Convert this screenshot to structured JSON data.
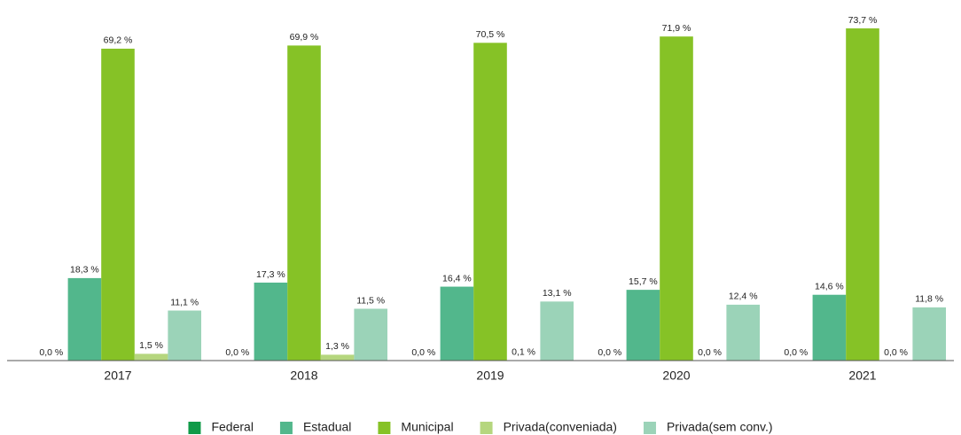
{
  "chart_data": {
    "type": "bar",
    "categories": [
      "2017",
      "2018",
      "2019",
      "2020",
      "2021"
    ],
    "ylim": [
      0,
      80
    ],
    "legend": "bottom",
    "series": [
      {
        "name": "Federal",
        "color": "#0f9a48",
        "values": [
          0.0,
          0.0,
          0.0,
          0.0,
          0.0
        ],
        "value_labels": [
          "0,0 %",
          "0,0 %",
          "0,0 %",
          "0,0 %",
          "0,0 %"
        ]
      },
      {
        "name": "Estadual",
        "color": "#52b78c",
        "values": [
          18.3,
          17.3,
          16.4,
          15.7,
          14.6
        ],
        "value_labels": [
          "18,3 %",
          "17,3 %",
          "16,4 %",
          "15,7 %",
          "14,6 %"
        ]
      },
      {
        "name": "Municipal",
        "color": "#86c226",
        "values": [
          69.2,
          69.9,
          70.5,
          71.9,
          73.7
        ],
        "value_labels": [
          "69,2 %",
          "69,9 %",
          "70,5 %",
          "71,9 %",
          "73,7 %"
        ]
      },
      {
        "name": "Privada(conveniada)",
        "color": "#b5d67e",
        "values": [
          1.5,
          1.3,
          0.1,
          0.0,
          0.0
        ],
        "value_labels": [
          "1,5 %",
          "1,3 %",
          "0,1 %",
          "0,0 %",
          "0,0 %"
        ]
      },
      {
        "name": "Privada(sem conv.)",
        "color": "#9bd3b8",
        "values": [
          11.1,
          11.5,
          13.1,
          12.4,
          11.8
        ],
        "value_labels": [
          "11,1 %",
          "11,5 %",
          "13,1 %",
          "12,4 %",
          "11,8 %"
        ]
      }
    ]
  }
}
